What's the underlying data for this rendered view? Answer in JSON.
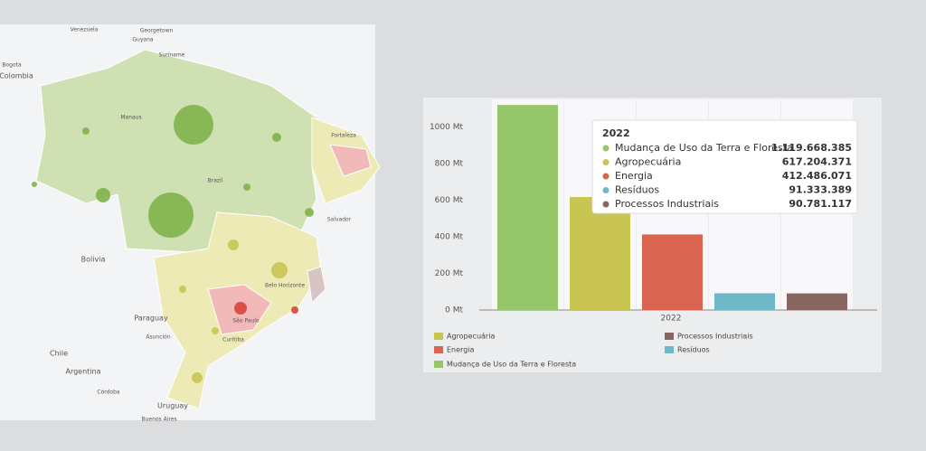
{
  "map": {
    "labels": [
      "Venezuela",
      "Guyana",
      "Georgetown",
      "Suriname",
      "Bogota",
      "Colombia",
      "Manaus",
      "Brazil",
      "Fortaleza",
      "Salvador",
      "Bolivia",
      "Paraguay",
      "Belo Horizonte",
      "São Paulo",
      "Curitiba",
      "Chile",
      "Argentina",
      "Uruguay",
      "Buenos Aires",
      "Asunción",
      "Córdoba"
    ]
  },
  "chart_data": {
    "type": "bar",
    "categories": [
      "2022"
    ],
    "series": [
      {
        "name": "Mudança de Uso da Terra e Floresta",
        "color": "#95c66a",
        "values": [
          1119.668385
        ],
        "value_labels": [
          "1.119.668.385"
        ]
      },
      {
        "name": "Agropecuária",
        "color": "#c9c552",
        "values": [
          617.204371
        ],
        "value_labels": [
          "617.204.371"
        ]
      },
      {
        "name": "Energia",
        "color": "#d9644f",
        "values": [
          412.486071
        ],
        "value_labels": [
          "412.486.071"
        ]
      },
      {
        "name": "Resíduos",
        "color": "#6db9c7",
        "values": [
          91.333389
        ],
        "value_labels": [
          "91.333.389"
        ]
      },
      {
        "name": "Processos Industriais",
        "color": "#8a6660",
        "values": [
          90.781117
        ],
        "value_labels": [
          "90.781.117"
        ]
      }
    ],
    "ylim": [
      0,
      1150
    ],
    "yticks": [
      {
        "value": 0,
        "label": "0 Mt"
      },
      {
        "value": 200,
        "label": "200 Mt"
      },
      {
        "value": 400,
        "label": "400 Mt"
      },
      {
        "value": 600,
        "label": "600 Mt"
      },
      {
        "value": 800,
        "label": "800 Mt"
      },
      {
        "value": 1000,
        "label": "1000 Mt"
      }
    ],
    "legend": "bottom",
    "tooltip": true
  }
}
